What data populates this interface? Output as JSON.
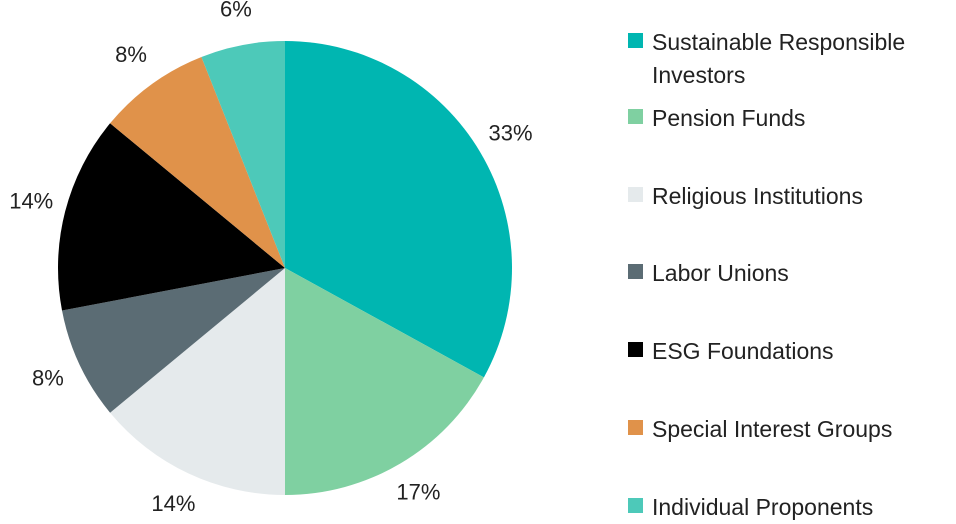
{
  "chart_data": {
    "type": "pie",
    "categories": [
      "Sustainable Responsible Investors",
      "Pension Funds",
      "Religious Institutions",
      "Labor Unions",
      "ESG Foundations",
      "Special Interest Groups",
      "Individual Proponents"
    ],
    "values": [
      33,
      17,
      14,
      8,
      14,
      8,
      6
    ],
    "value_labels": [
      "33%",
      "17%",
      "14%",
      "8%",
      "14%",
      "8%",
      "6%"
    ],
    "colors": [
      "#00b6b1",
      "#7fd0a1",
      "#e5eaec",
      "#5b6c74",
      "#000000",
      "#e0924a",
      "#4dc9b9"
    ],
    "legend": "right"
  }
}
